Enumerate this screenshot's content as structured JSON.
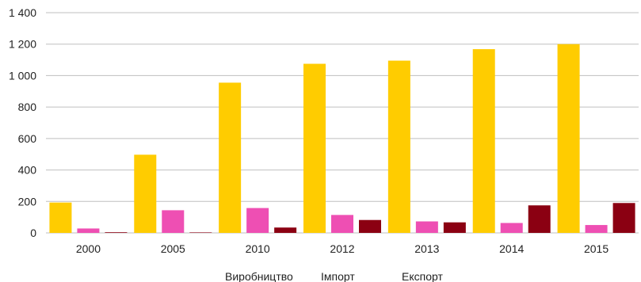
{
  "chart_data": {
    "type": "bar",
    "categories": [
      "2000",
      "2005",
      "2010",
      "2012",
      "2013",
      "2014",
      "2015"
    ],
    "series": [
      {
        "name": "Виробництво",
        "color": "#FFCC00",
        "values": [
          193,
          497,
          955,
          1075,
          1095,
          1168,
          1200
        ]
      },
      {
        "name": "Імпорт",
        "color": "#EE4FB3",
        "values": [
          28,
          144,
          158,
          114,
          73,
          63,
          50
        ]
      },
      {
        "name": "Експорт",
        "color": "#8B0012",
        "values": [
          4,
          3,
          34,
          82,
          67,
          175,
          190
        ]
      }
    ],
    "y_ticks": [
      {
        "value": 0,
        "label": "0"
      },
      {
        "value": 200,
        "label": "200"
      },
      {
        "value": 400,
        "label": "400"
      },
      {
        "value": 600,
        "label": "600"
      },
      {
        "value": 800,
        "label": "800"
      },
      {
        "value": 1000,
        "label": "1 000"
      },
      {
        "value": 1200,
        "label": "1 200"
      },
      {
        "value": 1400,
        "label": "1 400"
      }
    ],
    "ylim": [
      0,
      1400
    ],
    "grid": true,
    "legend_position": "bottom",
    "title": "",
    "xlabel": "",
    "ylabel": ""
  }
}
